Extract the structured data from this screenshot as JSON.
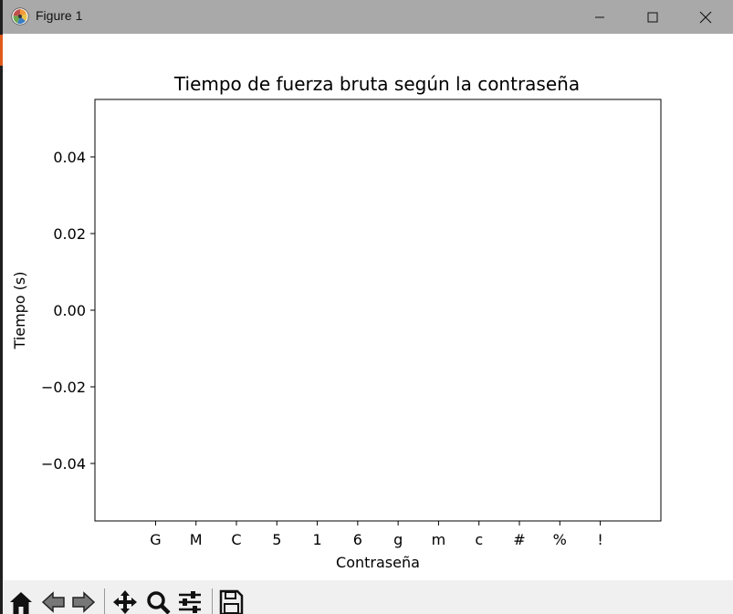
{
  "window": {
    "title": "Figure 1"
  },
  "toolbar": {
    "buttons": [
      "home-icon",
      "back-icon",
      "forward-icon",
      "pan-icon",
      "zoom-icon",
      "configure-icon",
      "save-icon"
    ]
  },
  "chart_data": {
    "type": "bar",
    "title": "Tiempo de fuerza bruta según la contraseña",
    "xlabel": "Contraseña",
    "ylabel": "Tiempo (s)",
    "categories": [
      "G",
      "M",
      "C",
      "5",
      "1",
      "6",
      "g",
      "m",
      "c",
      "#",
      "%",
      "!"
    ],
    "values": [
      0,
      0,
      0,
      0,
      0,
      0,
      0,
      0,
      0,
      0,
      0,
      0
    ],
    "ylim": [
      -0.055,
      0.055
    ],
    "yticks": [
      "0.04",
      "0.02",
      "0.00",
      "−0.02",
      "−0.04"
    ],
    "ytick_values": [
      0.04,
      0.02,
      0,
      -0.02,
      -0.04
    ],
    "grid": false
  }
}
